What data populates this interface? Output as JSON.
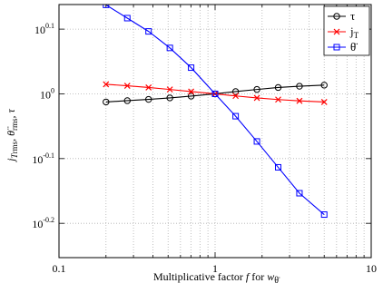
{
  "chart_data": {
    "type": "line",
    "x_scale": "log",
    "y_scale": "log",
    "xlim": [
      0.1,
      10
    ],
    "ylim": [
      0.00535,
      0.0
    ],
    "ylim_note": "ignore",
    "xlabel_parts": {
      "main": "Multiplicative factor ",
      "f": "f",
      "rest": " for ",
      "w": "w",
      "sub": "θ̈"
    },
    "ylabel_parts": {
      "j": "j",
      "j_sub": "T",
      "rms": "rms",
      "sep": ", ",
      "theta": "θ̈",
      "theta_sub": "rms",
      "sep2": ", ",
      "tau": "τ"
    },
    "x_ticks": [
      {
        "value": 0.1,
        "label": "0.1"
      },
      {
        "value": 1,
        "label": "1"
      },
      {
        "value": 10,
        "label": "10"
      }
    ],
    "y_ticks": [
      {
        "value": -2,
        "base": "10",
        "exp": "-0.2"
      },
      {
        "value": -1,
        "base": "10",
        "exp": "-0.1"
      },
      {
        "value": 0,
        "base": "10",
        "exp": "0"
      },
      {
        "value": 1,
        "base": "10",
        "exp": "0.1"
      }
    ],
    "y_log_range": [
      -0.253,
      0.138
    ],
    "grid": true,
    "legend_position": "top-right",
    "x": [
      0.2,
      0.2739,
      0.3748,
      0.5131,
      0.7022,
      1.0,
      1.3536,
      1.8528,
      2.5357,
      3.4706,
      5.0
    ],
    "series": [
      {
        "name": "τ",
        "color": "#000000",
        "marker": "circle",
        "log_values": [
          -0.0125,
          -0.0105,
          -0.0085,
          -0.0062,
          -0.0035,
          0.0,
          0.0035,
          0.0068,
          0.0098,
          0.0118,
          0.0135
        ]
      },
      {
        "name": "j",
        "name_sub": "T",
        "color": "#ff0000",
        "marker": "x",
        "log_values": [
          0.0148,
          0.0125,
          0.0098,
          0.0068,
          0.0035,
          0.0,
          -0.0032,
          -0.0062,
          -0.0088,
          -0.0108,
          -0.0125
        ]
      },
      {
        "name": "θ̈",
        "color": "#0000ff",
        "marker": "square",
        "log_values": [
          0.1375,
          0.117,
          0.0965,
          0.071,
          0.0405,
          0.0,
          -0.0345,
          -0.0735,
          -0.1135,
          -0.1535,
          -0.1865
        ]
      }
    ]
  }
}
